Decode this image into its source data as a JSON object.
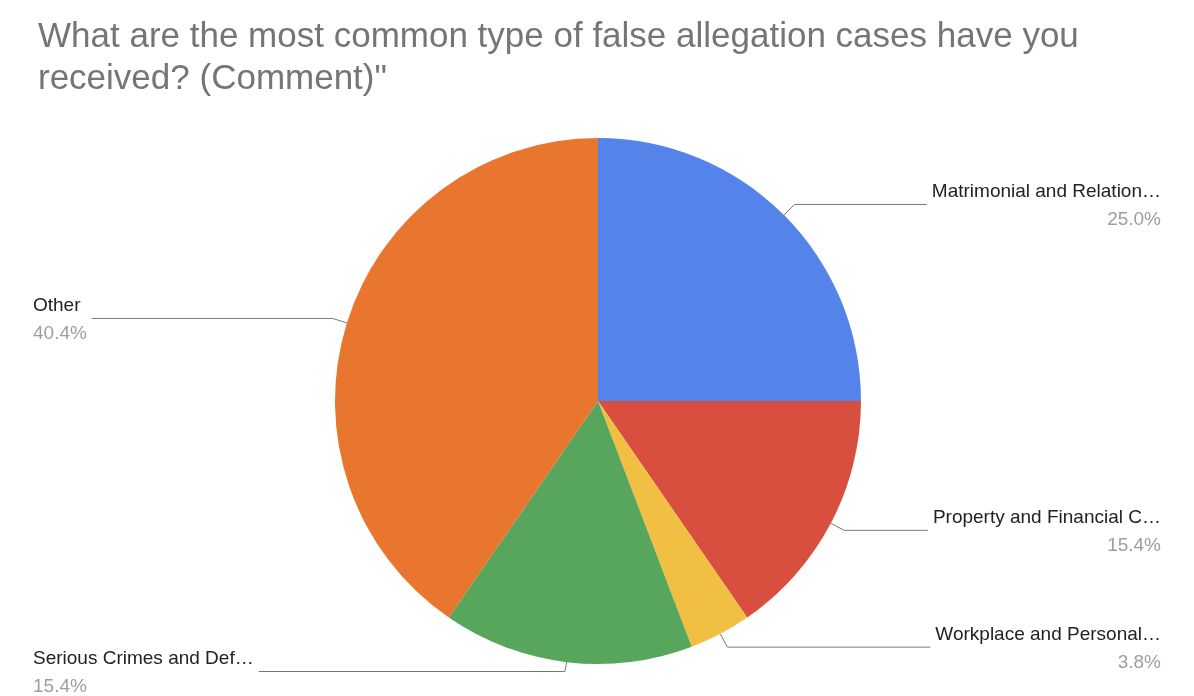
{
  "chart_data": {
    "type": "pie",
    "title": "What are the most common type of false allegation cases have you received? (Comment)\"",
    "categories": [
      "Matrimonial and Relation…",
      "Property and Financial C…",
      "Workplace and Personal…",
      "Serious Crimes and Def…",
      "Other"
    ],
    "values": [
      25.0,
      15.4,
      3.8,
      15.4,
      40.4
    ],
    "value_labels": [
      "25.0%",
      "15.4%",
      "3.8%",
      "15.4%",
      "40.4%"
    ],
    "colors": [
      "#5484e9",
      "#d94f3f",
      "#f1bf42",
      "#58a55c",
      "#e8762f"
    ],
    "legend": false
  }
}
